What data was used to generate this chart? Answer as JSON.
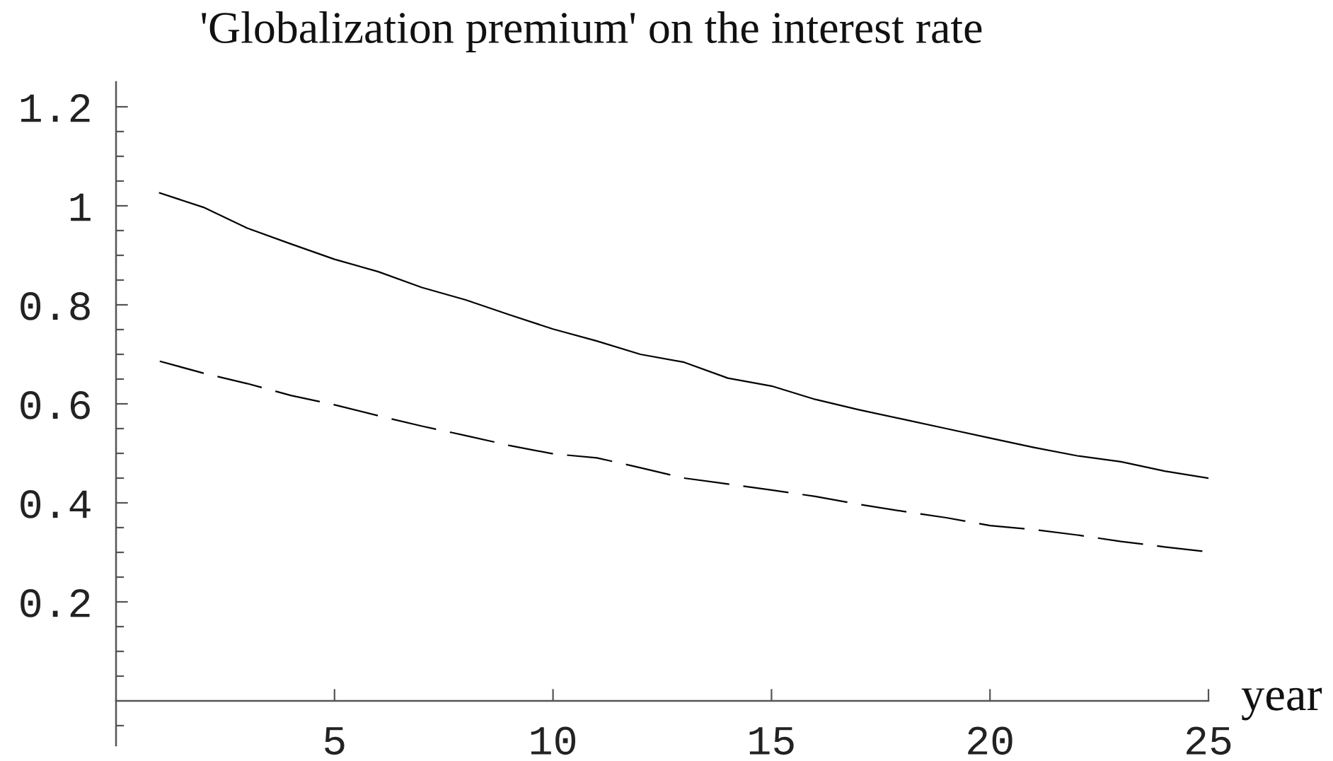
{
  "chart_data": {
    "type": "line",
    "title": "'Globalization premium' on the interest rate",
    "xlabel": "year",
    "x": [
      1,
      2,
      3,
      4,
      5,
      6,
      7,
      8,
      9,
      10,
      11,
      12,
      13,
      14,
      15,
      16,
      17,
      18,
      19,
      20,
      21,
      22,
      23,
      24,
      25
    ],
    "series": [
      {
        "color": "#000000",
        "line_style": "solid",
        "values": [
          1.026,
          0.997,
          0.955,
          0.923,
          0.892,
          0.867,
          0.835,
          0.81,
          0.78,
          0.751,
          0.727,
          0.7,
          0.684,
          0.652,
          0.636,
          0.609,
          0.588,
          0.569,
          0.55,
          0.531,
          0.512,
          0.495,
          0.483,
          0.464,
          0.45
        ]
      },
      {
        "color": "#000000",
        "line_style": "dashed",
        "values": [
          0.686,
          0.662,
          0.641,
          0.617,
          0.598,
          0.576,
          0.555,
          0.536,
          0.516,
          0.499,
          0.491,
          0.471,
          0.45,
          0.438,
          0.426,
          0.413,
          0.397,
          0.383,
          0.37,
          0.354,
          0.346,
          0.335,
          0.322,
          0.311,
          0.301
        ]
      }
    ],
    "xlim": [
      0,
      25
    ],
    "ylim": [
      -0.09,
      1.25
    ],
    "xticks": [
      5,
      10,
      15,
      20,
      25
    ],
    "yticks": [
      {
        "value": -0.05,
        "label": null
      },
      {
        "value": 0.05,
        "label": null
      },
      {
        "value": 0.1,
        "label": null
      },
      {
        "value": 0.15,
        "label": null
      },
      0.2,
      {
        "value": 0.25,
        "label": null
      },
      {
        "value": 0.3,
        "label": null
      },
      {
        "value": 0.35,
        "label": null
      },
      0.4,
      {
        "value": 0.45,
        "label": null
      },
      {
        "value": 0.5,
        "label": null
      },
      {
        "value": 0.55,
        "label": null
      },
      0.6,
      {
        "value": 0.65,
        "label": null
      },
      {
        "value": 0.7,
        "label": null
      },
      {
        "value": 0.75,
        "label": null
      },
      0.8,
      {
        "value": 0.85,
        "label": null
      },
      {
        "value": 0.9,
        "label": null
      },
      {
        "value": 0.95,
        "label": null
      },
      1,
      {
        "value": 1.05,
        "label": null
      },
      {
        "value": 1.1,
        "label": null
      },
      {
        "value": 1.15,
        "label": null
      },
      1.2
    ]
  }
}
